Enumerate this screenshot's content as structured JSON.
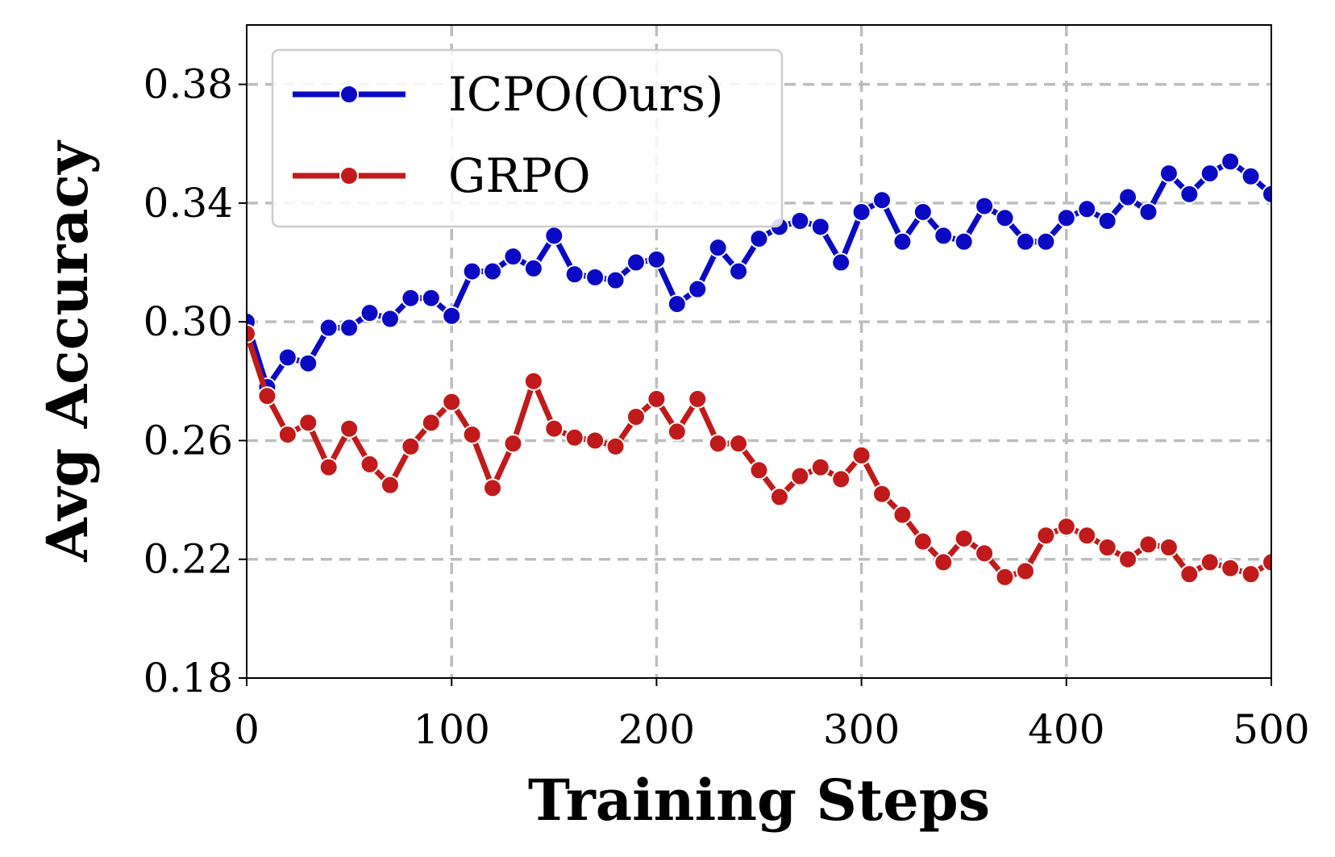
{
  "chart_data": {
    "type": "line",
    "xlabel": "Training Steps",
    "ylabel": "Avg Accuracy",
    "xlim": [
      0,
      500
    ],
    "ylim": [
      0.18,
      0.4
    ],
    "xticks": [
      0,
      100,
      200,
      300,
      400,
      500
    ],
    "xtick_labels": [
      "0",
      "100",
      "200",
      "300",
      "400",
      "500"
    ],
    "yticks": [
      0.18,
      0.22,
      0.26,
      0.3,
      0.34,
      0.38
    ],
    "ytick_labels": [
      "0.18",
      "0.22",
      "0.26",
      "0.30",
      "0.34",
      "0.38"
    ],
    "grid": true,
    "grid_style": "dashed",
    "legend_position": "top-left",
    "x": [
      0,
      10,
      20,
      30,
      40,
      50,
      60,
      70,
      80,
      90,
      100,
      110,
      120,
      130,
      140,
      150,
      160,
      170,
      180,
      190,
      200,
      210,
      220,
      230,
      240,
      250,
      260,
      270,
      280,
      290,
      300,
      310,
      320,
      330,
      340,
      350,
      360,
      370,
      380,
      390,
      400,
      410,
      420,
      430,
      440,
      450,
      460,
      470,
      480,
      490,
      500
    ],
    "series": [
      {
        "name": "ICPO(Ours)",
        "color": "#0a0ac4",
        "values": [
          0.3,
          0.278,
          0.288,
          0.286,
          0.298,
          0.298,
          0.303,
          0.301,
          0.308,
          0.308,
          0.302,
          0.317,
          0.317,
          0.322,
          0.318,
          0.329,
          0.316,
          0.315,
          0.314,
          0.32,
          0.321,
          0.306,
          0.311,
          0.325,
          0.317,
          0.328,
          0.332,
          0.334,
          0.332,
          0.32,
          0.337,
          0.341,
          0.327,
          0.337,
          0.329,
          0.327,
          0.339,
          0.335,
          0.327,
          0.327,
          0.335,
          0.338,
          0.334,
          0.342,
          0.337,
          0.35,
          0.343,
          0.35,
          0.354,
          0.349,
          0.343
        ]
      },
      {
        "name": "GRPO",
        "color": "#c01a1a",
        "values": [
          0.296,
          0.275,
          0.262,
          0.266,
          0.251,
          0.264,
          0.252,
          0.245,
          0.258,
          0.266,
          0.273,
          0.262,
          0.244,
          0.259,
          0.28,
          0.264,
          0.261,
          0.26,
          0.258,
          0.268,
          0.274,
          0.263,
          0.274,
          0.259,
          0.259,
          0.25,
          0.241,
          0.248,
          0.251,
          0.247,
          0.255,
          0.242,
          0.235,
          0.226,
          0.219,
          0.227,
          0.222,
          0.214,
          0.216,
          0.228,
          0.231,
          0.228,
          0.224,
          0.22,
          0.225,
          0.224,
          0.215,
          0.219,
          0.217,
          0.215,
          0.219
        ]
      }
    ]
  }
}
